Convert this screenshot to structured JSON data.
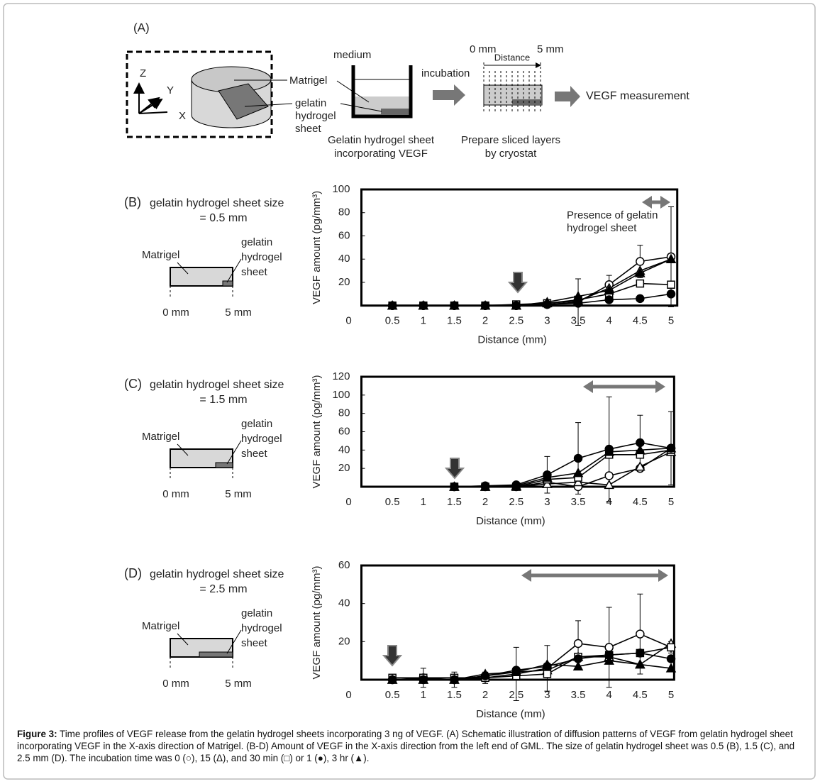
{
  "figure": {
    "panel_a": {
      "label": "(A)",
      "z": "Z",
      "y": "Y",
      "x": "X",
      "matrigel": "Matrigel",
      "sheet": [
        "gelatin",
        "hydrogel",
        "sheet"
      ],
      "medium": "medium",
      "beaker_caption": [
        "Gelatin hydrogel sheet",
        "incorporating VEGF"
      ],
      "incubation": "incubation",
      "left_mm": "0 mm",
      "distance": "Distance",
      "right_mm": "5 mm",
      "slice_caption": [
        "Prepare sliced layers",
        "by cryostat"
      ],
      "measurement": "VEGF measurement"
    },
    "panels": [
      {
        "label": "(B)",
        "title": "gelatin hydrogel sheet size",
        "size": "= 0.5 mm",
        "matrigel": "Matrigel",
        "sheet": [
          "gelatin",
          "hydrogel",
          "sheet"
        ],
        "left_mm": "0 mm",
        "right_mm": "5 mm",
        "note": [
          "Presence of gelatin",
          "hydrogel sheet"
        ]
      },
      {
        "label": "(C)",
        "title": "gelatin hydrogel sheet size",
        "size": "= 1.5 mm",
        "matrigel": "Matrigel",
        "sheet": [
          "gelatin",
          "hydrogel",
          "sheet"
        ],
        "left_mm": "0 mm",
        "right_mm": "5 mm"
      },
      {
        "label": "(D)",
        "title": "gelatin hydrogel sheet size",
        "size": "= 2.5 mm",
        "matrigel": "Matrigel",
        "sheet": [
          "gelatin",
          "hydrogel",
          "sheet"
        ],
        "left_mm": "0 mm",
        "right_mm": "5 mm"
      }
    ],
    "caption": {
      "bold": "Figure 3:",
      "text": " Time profiles of VEGF release from the gelatin hydrogel sheets incorporating 3 ng of VEGF. (A) Schematic illustration of diffusion patterns of VEGF from gelatin hydrogel sheet incorporating VEGF in the X-axis direction of Matrigel. (B-D) Amount of VEGF in the X-axis direction from the left end of GML. The size of gelatin hydrogel sheet was 0.5 (B), 1.5 (C), and 2.5 mm (D). The incubation time was 0 (○), 15 (Δ), and 30 min (□) or 1 (●), 3 hr (▲)."
    }
  },
  "chart_data": [
    {
      "type": "line",
      "x_label": "Distance (mm)",
      "y_label": "VEGF amount (pg/mm³)",
      "x": [
        0.5,
        1,
        1.5,
        2,
        2.5,
        3,
        3.5,
        4,
        4.5,
        5
      ],
      "xlim": [
        0,
        5.1
      ],
      "xticks": [
        0,
        0.5,
        1,
        1.5,
        2,
        2.5,
        3,
        3.5,
        4,
        4.5,
        5
      ],
      "ylim": [
        0,
        100
      ],
      "yticks": [
        20,
        40,
        60,
        80,
        100
      ],
      "grid": false,
      "series": [
        {
          "marker": "open-circle",
          "color": "#000000",
          "values": [
            0,
            0,
            0,
            0,
            0,
            1,
            3,
            18,
            38,
            42
          ],
          "errors": [
            null,
            null,
            null,
            null,
            2,
            3,
            20,
            8,
            14,
            43
          ]
        },
        {
          "marker": "open-triangle",
          "color": "#000000",
          "values": [
            0,
            0,
            0,
            0,
            0,
            2,
            4,
            15,
            30,
            40
          ]
        },
        {
          "marker": "open-square",
          "color": "#000000",
          "values": [
            0,
            0,
            0,
            0,
            1,
            2,
            5,
            10,
            19,
            18
          ]
        },
        {
          "marker": "filled-circle",
          "color": "#000000",
          "values": [
            0,
            0,
            0,
            0,
            0,
            1,
            2,
            5,
            6,
            10
          ]
        },
        {
          "marker": "filled-triangle",
          "color": "#000000",
          "values": [
            0,
            0,
            0,
            0,
            0,
            3,
            8,
            13,
            28,
            40
          ]
        }
      ]
    },
    {
      "type": "line",
      "x_label": "Distance (mm)",
      "y_label": "VEGF amount (pg/mm³)",
      "x": [
        0.5,
        1,
        1.5,
        2,
        2.5,
        3,
        3.5,
        4,
        4.5,
        5
      ],
      "xlim": [
        0,
        5.05
      ],
      "xticks": [
        0,
        0.5,
        1,
        1.5,
        2,
        2.5,
        3,
        3.5,
        4,
        4.5,
        5
      ],
      "ylim": [
        0,
        120
      ],
      "yticks": [
        20,
        40,
        60,
        80,
        100,
        120
      ],
      "grid": false,
      "series": [
        {
          "marker": "open-circle",
          "color": "#000000",
          "values": [
            null,
            null,
            0,
            0,
            0,
            5,
            0,
            12,
            20,
            42
          ]
        },
        {
          "marker": "open-triangle",
          "color": "#000000",
          "values": [
            null,
            null,
            0,
            0,
            0,
            3,
            5,
            2,
            22,
            38
          ]
        },
        {
          "marker": "open-square",
          "color": "#000000",
          "values": [
            null,
            null,
            0,
            0,
            0,
            8,
            10,
            35,
            35,
            40
          ]
        },
        {
          "marker": "filled-circle",
          "color": "#000000",
          "values": [
            null,
            null,
            0,
            1,
            2,
            13,
            31,
            41,
            48,
            42
          ],
          "errors": [
            null,
            null,
            0,
            1,
            2,
            20,
            39,
            57,
            30,
            40
          ]
        },
        {
          "marker": "filled-triangle",
          "color": "#000000",
          "values": [
            null,
            null,
            0,
            0,
            1,
            10,
            15,
            38,
            40,
            42
          ]
        }
      ]
    },
    {
      "type": "line",
      "x_label": "Distance (mm)",
      "y_label": "VEGF amount (pg/mm³)",
      "x": [
        0.5,
        1,
        1.5,
        2,
        2.5,
        3,
        3.5,
        4,
        4.5,
        5
      ],
      "xlim": [
        0,
        5.05
      ],
      "xticks": [
        0,
        0.5,
        1,
        1.5,
        2,
        2.5,
        3,
        3.5,
        4,
        4.5,
        5
      ],
      "ylim": [
        0,
        60
      ],
      "yticks": [
        20,
        40,
        60
      ],
      "grid": false,
      "series": [
        {
          "marker": "open-circle",
          "color": "#000000",
          "values": [
            0,
            1,
            0,
            1,
            3,
            6,
            19,
            17,
            24,
            17
          ],
          "errors": [
            null,
            5,
            4,
            3,
            14,
            12,
            12,
            21,
            21,
            3
          ]
        },
        {
          "marker": "open-triangle",
          "color": "#000000",
          "values": [
            0,
            0,
            0,
            2,
            4,
            5,
            12,
            12,
            8,
            19
          ]
        },
        {
          "marker": "open-square",
          "color": "#000000",
          "values": [
            1,
            1,
            1,
            1,
            2,
            3,
            12,
            13,
            14,
            17
          ]
        },
        {
          "marker": "filled-circle",
          "color": "#000000",
          "values": [
            0,
            0,
            0,
            2,
            5,
            7,
            11,
            13,
            14,
            11
          ]
        },
        {
          "marker": "filled-triangle",
          "color": "#000000",
          "values": [
            0,
            0,
            0,
            3,
            4,
            8,
            7,
            10,
            8,
            6
          ]
        }
      ]
    }
  ]
}
